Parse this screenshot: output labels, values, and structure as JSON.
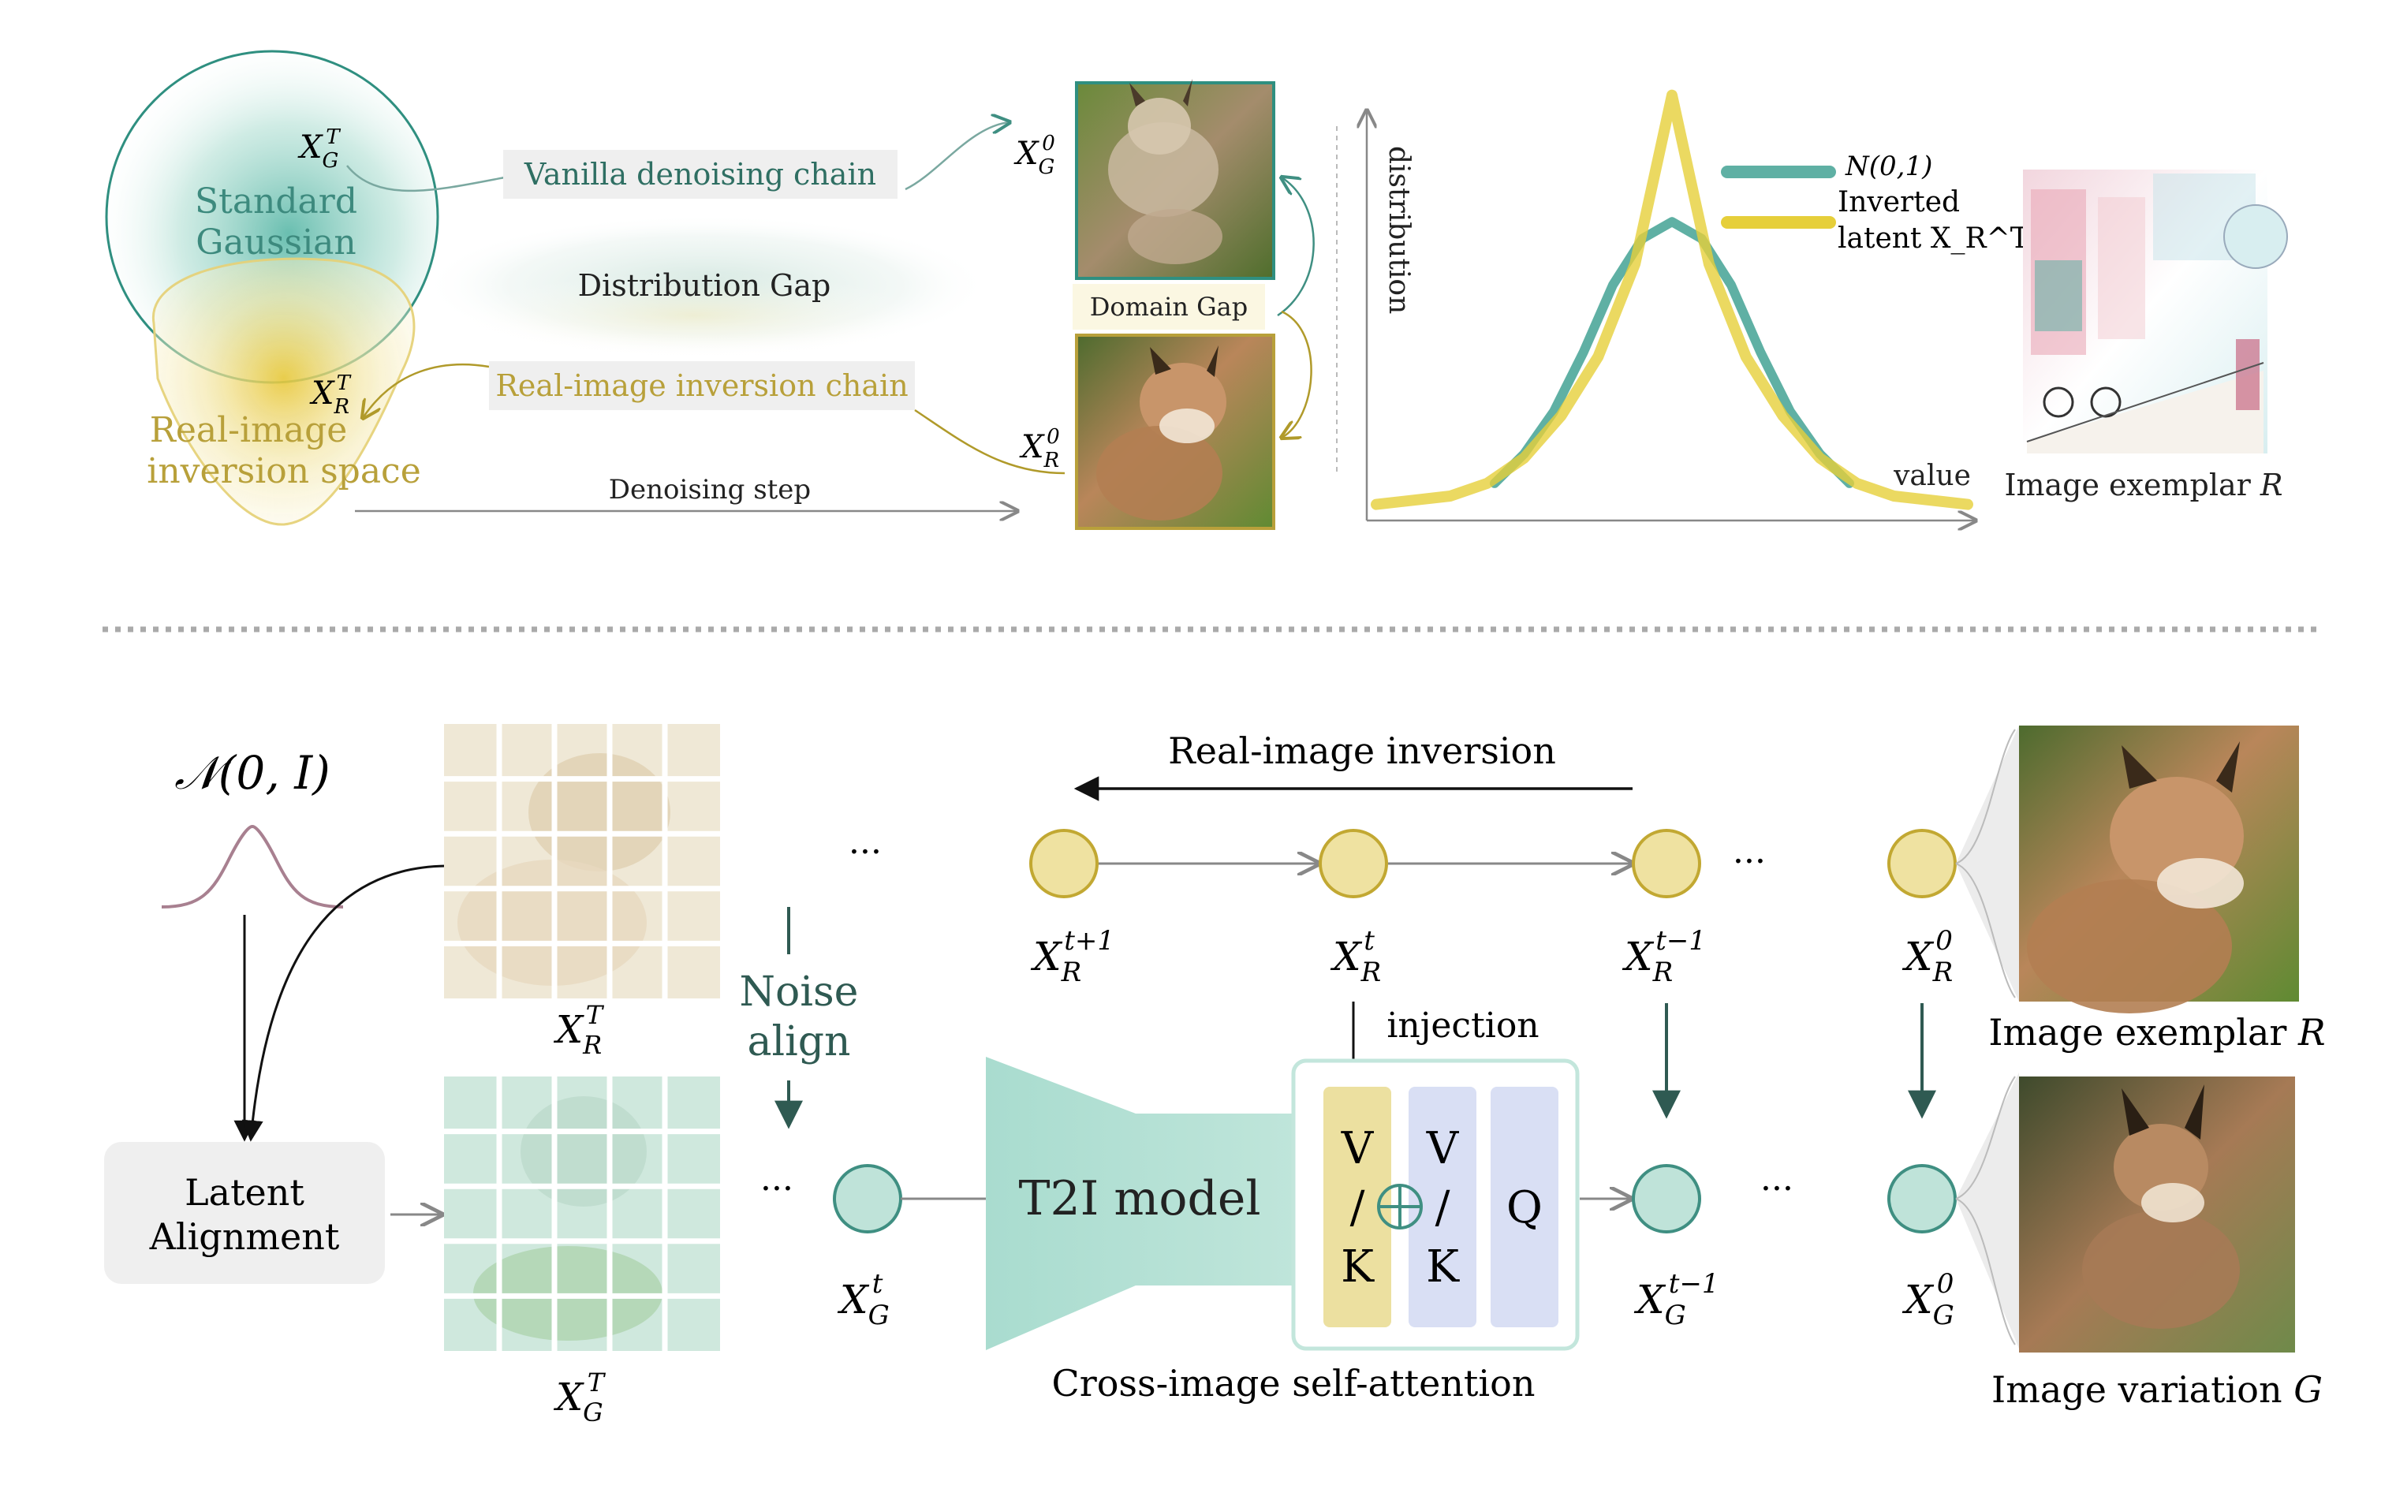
{
  "colors": {
    "teal": "#5fb0a4",
    "teal_dark": "#2f6f63",
    "gold": "#e6cf3a",
    "gold_dark": "#b09a2a",
    "circle_yellow": "#efe2a1",
    "circle_teal": "#bfe3d9",
    "bell": "#a88090",
    "v_block": "#ece0a0",
    "k_block": "#d9dff4"
  },
  "top": {
    "standard_gaussian": [
      "Standard",
      "Gaussian"
    ],
    "real_image_space": [
      "Real-image",
      "inversion space"
    ],
    "vanilla_chain": "Vanilla denoising chain",
    "distribution_gap": "Distribution Gap",
    "inversion_chain": "Real-image inversion chain",
    "denoising_step": "Denoising step",
    "domain_gap": "Domain Gap",
    "x_gt": {
      "base": "X",
      "sub": "G",
      "sup": "T"
    },
    "x_rt": {
      "base": "X",
      "sub": "R",
      "sup": "T"
    },
    "x_g0": {
      "base": "X",
      "sub": "G",
      "sup": "0"
    },
    "x_r0": {
      "base": "X",
      "sub": "R",
      "sup": "0"
    },
    "exemplar_caption": {
      "text": "Image exemplar ",
      "var": "R"
    }
  },
  "chart_data": {
    "type": "line",
    "title": "",
    "xlabel": "value",
    "ylabel": "distribution",
    "grid": false,
    "legend_placement": "top-right",
    "xlim": [
      -4,
      4
    ],
    "ylim": [
      0,
      1
    ],
    "series": [
      {
        "name": "N(0,1)",
        "legend_lines": [
          "N(0,1)"
        ],
        "color": "#5fb0a4",
        "x": [
          -2.4,
          -2.0,
          -1.6,
          -1.2,
          -0.8,
          -0.4,
          0.0,
          0.4,
          0.8,
          1.2,
          1.6,
          2.0,
          2.4
        ],
        "y": [
          0.06,
          0.13,
          0.23,
          0.37,
          0.53,
          0.64,
          0.68,
          0.64,
          0.53,
          0.37,
          0.23,
          0.13,
          0.06
        ]
      },
      {
        "name": "Inverted latent X_R^T",
        "legend_lines": [
          "Inverted",
          "latent X_R^T"
        ],
        "color": "#e6cf3a",
        "x": [
          -4.0,
          -3.0,
          -2.5,
          -2.0,
          -1.5,
          -1.0,
          -0.5,
          -0.25,
          0.0,
          0.25,
          0.5,
          1.0,
          1.5,
          2.0,
          2.5,
          3.0,
          4.0
        ],
        "y": [
          0.01,
          0.03,
          0.06,
          0.12,
          0.22,
          0.36,
          0.58,
          0.78,
          0.98,
          0.78,
          0.58,
          0.36,
          0.22,
          0.12,
          0.06,
          0.03,
          0.01
        ]
      }
    ]
  },
  "bottom": {
    "normal_label": "𝒩(0, I)",
    "latent_alignment": [
      "Latent",
      "Alignment"
    ],
    "noise_align": [
      "Noise",
      "align"
    ],
    "real_image_inversion": "Real-image inversion",
    "injection": "injection",
    "t2i_model": "T2I model",
    "cross_attention": "Cross-image self-attention",
    "ellipsis": "···",
    "block_v": "V",
    "block_slash": "/",
    "block_k": "K",
    "block_q": "Q",
    "exemplar_caption": {
      "text": "Image exemplar ",
      "var": "R"
    },
    "variation_caption": {
      "text": "Image variation ",
      "var": "G"
    },
    "grid_r_label": {
      "base": "X",
      "sub": "R",
      "sup": "T"
    },
    "grid_g_label": {
      "base": "X",
      "sub": "G",
      "sup": "T"
    },
    "xr_tp1": {
      "base": "X",
      "sub": "R",
      "sup": "t+1"
    },
    "xr_t": {
      "base": "X",
      "sub": "R",
      "sup": "t"
    },
    "xr_tm1": {
      "base": "X",
      "sub": "R",
      "sup": "t−1"
    },
    "xr_0": {
      "base": "X",
      "sub": "R",
      "sup": "0"
    },
    "xg_t": {
      "base": "X",
      "sub": "G",
      "sup": "t"
    },
    "xg_tm1": {
      "base": "X",
      "sub": "G",
      "sup": "t−1"
    },
    "xg_0": {
      "base": "X",
      "sub": "G",
      "sup": "0"
    }
  }
}
